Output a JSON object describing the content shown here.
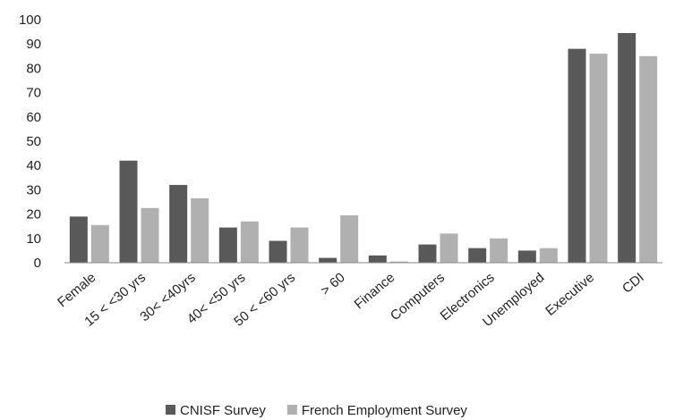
{
  "chart_data": {
    "type": "bar",
    "categories": [
      "Female",
      "15 < <30 yrs",
      "30< <40yrs",
      "40< <50 yrs",
      "50 < <60 yrs",
      "> 60",
      "Finance",
      "Computers",
      "Electronics",
      "Unemployed",
      "Executive",
      "CDI"
    ],
    "series": [
      {
        "name": "CNISF Survey",
        "color": "#595959",
        "values": [
          19,
          42,
          32,
          14.5,
          9,
          2,
          3,
          7.5,
          6,
          5,
          88,
          94.5
        ]
      },
      {
        "name": "French Employment Survey",
        "color": "#b0b0b0",
        "values": [
          15.5,
          22.5,
          26.5,
          17,
          14.5,
          19.5,
          0.5,
          12,
          10,
          6,
          86,
          85
        ]
      }
    ],
    "ylim": [
      0,
      100
    ],
    "yticks": [
      0,
      10,
      20,
      30,
      40,
      50,
      60,
      70,
      80,
      90,
      100
    ],
    "grid": false,
    "legend": "bottom"
  }
}
